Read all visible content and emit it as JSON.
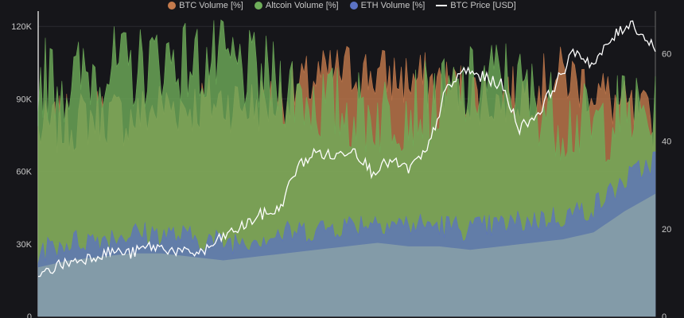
{
  "legend": [
    {
      "label": "BTC Volume [%]",
      "color": "#c47a4c",
      "kind": "dot"
    },
    {
      "label": "Altcoin Volume [%]",
      "color": "#6fae5a",
      "kind": "dot"
    },
    {
      "label": "ETH Volume [%]",
      "color": "#5b72c4",
      "kind": "dot"
    },
    {
      "label": "BTC Price [USD]",
      "color": "#ffffff",
      "kind": "line"
    }
  ],
  "chart_data": {
    "type": "area",
    "title": "",
    "xlabel": "",
    "ylabel": "",
    "y_left": {
      "range": [
        0,
        125000
      ],
      "ticks": [
        0,
        30000,
        60000,
        90000,
        120000
      ],
      "tick_labels": [
        "0",
        "30K",
        "60K",
        "90K",
        "120K"
      ]
    },
    "y_right": {
      "range": [
        0,
        69
      ],
      "ticks": [
        0,
        20,
        40,
        60
      ],
      "tick_labels": [
        "0",
        "20",
        "40",
        "60"
      ]
    },
    "x": {
      "start": 0,
      "end": 100,
      "ticks_shown": false
    },
    "grid": "horizontal",
    "legend_position": "top-center",
    "series": [
      {
        "name": "ETH Volume [%]",
        "axis": "right",
        "color": "#5b72c4",
        "x": [
          0,
          5,
          10,
          15,
          20,
          25,
          30,
          35,
          40,
          45,
          50,
          55,
          60,
          65,
          70,
          75,
          80,
          85,
          90,
          95,
          100
        ],
        "values": [
          14,
          16,
          17,
          18,
          18,
          17,
          16,
          17,
          18,
          19,
          20,
          21,
          20,
          20,
          19,
          20,
          21,
          22,
          24,
          30,
          35
        ]
      },
      {
        "name": "Altcoin Volume [%]",
        "axis": "right",
        "color": "#6fae5a",
        "x": [
          0,
          5,
          10,
          15,
          20,
          25,
          30,
          35,
          40,
          45,
          50,
          55,
          60,
          65,
          70,
          75,
          80,
          85,
          90,
          95,
          100
        ],
        "values": [
          52,
          50,
          54,
          53,
          56,
          55,
          55,
          52,
          50,
          46,
          44,
          43,
          45,
          46,
          49,
          52,
          47,
          42,
          40,
          44,
          42
        ]
      },
      {
        "name": "BTC Volume [%]",
        "axis": "right",
        "color": "#c47a4c",
        "x": [
          0,
          5,
          10,
          15,
          20,
          25,
          30,
          35,
          40,
          45,
          50,
          55,
          60,
          65,
          70,
          75,
          80,
          85,
          90,
          95,
          100
        ],
        "values": [
          40,
          42,
          44,
          43,
          46,
          46,
          47,
          46,
          48,
          52,
          54,
          53,
          52,
          51,
          49,
          47,
          50,
          53,
          50,
          45,
          42
        ]
      },
      {
        "name": "BTC Price [USD]",
        "axis": "left",
        "color": "#ffffff",
        "x": [
          0,
          3,
          6,
          9,
          12,
          15,
          18,
          21,
          24,
          27,
          30,
          33,
          36,
          39,
          42,
          45,
          48,
          51,
          54,
          57,
          60,
          63,
          66,
          69,
          72,
          75,
          78,
          81,
          84,
          87,
          90,
          93,
          96,
          98,
          100
        ],
        "values": [
          16000,
          21000,
          23000,
          25000,
          27000,
          26000,
          29000,
          28000,
          26000,
          27000,
          33000,
          37000,
          42000,
          44000,
          62000,
          68000,
          66000,
          70000,
          60000,
          64000,
          61000,
          68000,
          93000,
          102000,
          99000,
          96000,
          78000,
          84000,
          97000,
          110000,
          104000,
          115000,
          122000,
          116000,
          111000
        ]
      }
    ]
  }
}
